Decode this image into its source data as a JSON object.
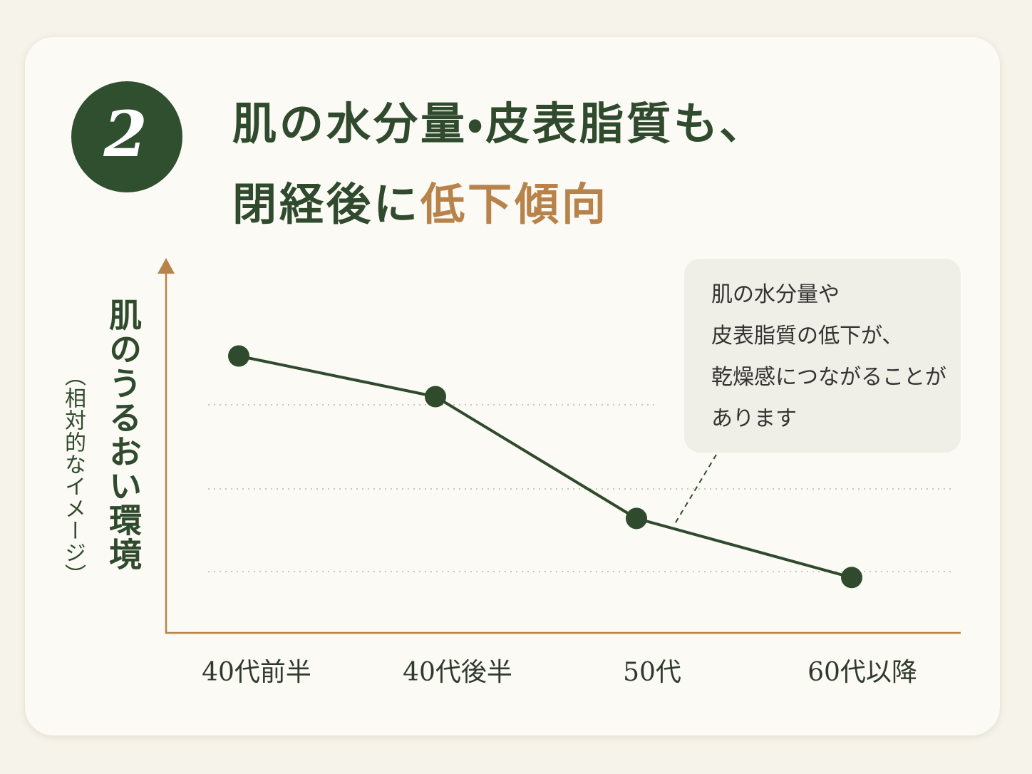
{
  "badge": "2",
  "chart_data": {
    "type": "line",
    "title": "肌の水分量・皮表脂質も、",
    "title_line2": "閉経後に",
    "title_highlight": "低下傾向",
    "y_label": "肌のうるおい環境",
    "y_sublabel": "（相対的なイメージ）",
    "annotation": [
      "肌の水分量や",
      "皮表脂質の低下が、",
      "乾燥感につながることが",
      "あります"
    ],
    "categories": [
      "40代前半",
      "40代後半",
      "50代",
      "60代以降"
    ],
    "values": [
      75,
      64,
      31,
      15
    ],
    "color": "#2f4a2c",
    "ylim": [
      0,
      100
    ]
  }
}
